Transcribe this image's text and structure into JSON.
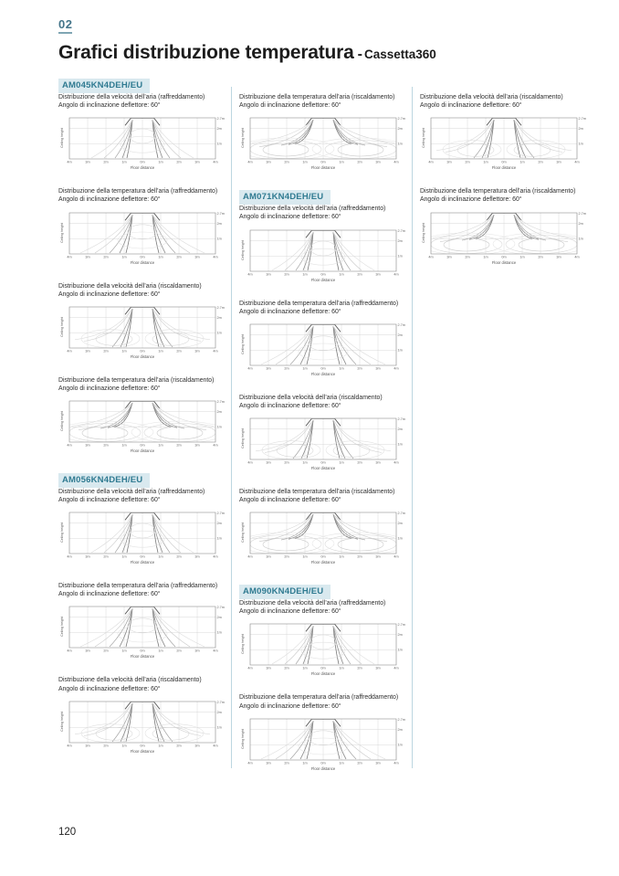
{
  "page": {
    "section_number": "02",
    "title": "Grafici distribuzione temperatura",
    "title_dash": "-",
    "title_suffix": "Cassetta360",
    "page_number": "120"
  },
  "section_labels": {
    "velocity_cooling": "Distribuzione della velocità dell’aria (raffreddamento)",
    "temperature_cooling": "Distribuzione della temperatura dell’aria (raffreddamento)",
    "velocity_heating": "Distribuzione della velocità dell’aria (riscaldamento)",
    "temperature_heating": "Distribuzione della temperatura dell’aria (riscaldamento)",
    "deflector": "Angolo di inclinazione deflettore: 60°"
  },
  "chart_axes": {
    "ylabel": "Ceiling height",
    "xlabel": "Floor distance",
    "yticks": [
      "2.7m",
      "2m",
      "1m"
    ],
    "xticks": [
      "4m",
      "3m",
      "2m",
      "1m",
      "0m",
      "1m",
      "2m",
      "3m",
      "4m"
    ]
  },
  "models": [
    "AM045KN4DEH/EU",
    "AM056KN4DEH/EU",
    "AM071KN4DEH/EU",
    "AM090KN4DEH/EU"
  ],
  "columns": [
    {
      "blocks": [
        {
          "type": "model",
          "label": "AM045KN4DEH/EU"
        },
        {
          "type": "chart",
          "label_key": "velocity_cooling",
          "style": "funnel_narrow"
        },
        {
          "type": "chart",
          "label_key": "temperature_cooling",
          "style": "funnel_wide"
        },
        {
          "type": "chart",
          "label_key": "velocity_heating",
          "style": "funnel_ovals"
        },
        {
          "type": "chart",
          "label_key": "temperature_heating",
          "style": "fan_contours"
        },
        {
          "type": "model",
          "label": "AM056KN4DEH/EU"
        },
        {
          "type": "chart",
          "label_key": "velocity_cooling",
          "style": "funnel_narrow"
        },
        {
          "type": "chart",
          "label_key": "temperature_cooling",
          "style": "funnel_wide"
        },
        {
          "type": "chart",
          "label_key": "velocity_heating",
          "style": "funnel_ovals"
        }
      ]
    },
    {
      "blocks": [
        {
          "type": "chart",
          "label_key": "temperature_heating",
          "style": "fan_contours"
        },
        {
          "type": "model",
          "label": "AM071KN4DEH/EU"
        },
        {
          "type": "chart",
          "label_key": "velocity_cooling",
          "style": "funnel_narrow"
        },
        {
          "type": "chart",
          "label_key": "temperature_cooling",
          "style": "funnel_wide"
        },
        {
          "type": "chart",
          "label_key": "velocity_heating",
          "style": "funnel_ovals"
        },
        {
          "type": "chart",
          "label_key": "temperature_heating",
          "style": "fan_contours"
        },
        {
          "type": "model",
          "label": "AM090KN4DEH/EU"
        },
        {
          "type": "chart",
          "label_key": "velocity_cooling",
          "style": "funnel_narrow"
        },
        {
          "type": "chart",
          "label_key": "temperature_cooling",
          "style": "funnel_wide"
        }
      ]
    },
    {
      "blocks": [
        {
          "type": "chart",
          "label_key": "velocity_heating",
          "style": "funnel_ovals"
        },
        {
          "type": "chart",
          "label_key": "temperature_heating",
          "style": "fan_contours"
        }
      ]
    }
  ],
  "colors": {
    "accent_teal": "#44758a",
    "badge_bg": "#d9e9ef",
    "badge_text": "#2f7a91",
    "divider": "#bcd6e0"
  }
}
